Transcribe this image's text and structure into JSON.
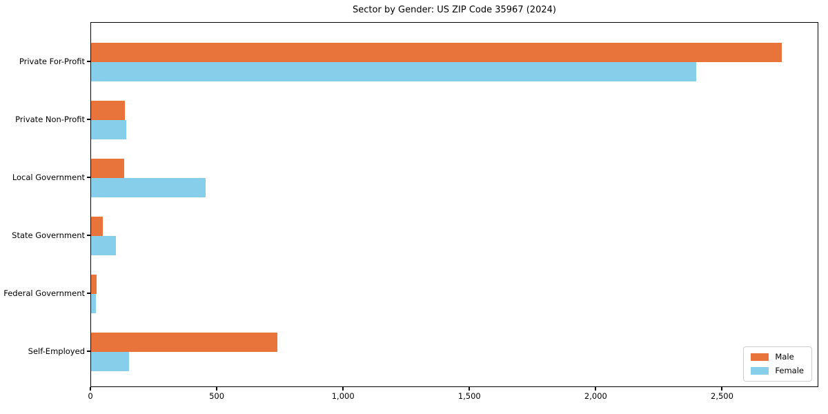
{
  "title": "Sector by Gender: US ZIP Code 35967 (2024)",
  "chart_data": {
    "type": "bar",
    "orientation": "horizontal",
    "title": "Sector by Gender: US ZIP Code 35967 (2024)",
    "categories": [
      "Private For-Profit",
      "Private Non-Profit",
      "Local Government",
      "State Government",
      "Federal Government",
      "Self-Employed"
    ],
    "series": [
      {
        "name": "Male",
        "color": "#e8743c",
        "values": [
          2740,
          135,
          130,
          47,
          21,
          740
        ]
      },
      {
        "name": "Female",
        "color": "#87ceeb",
        "values": [
          2400,
          140,
          455,
          98,
          19,
          150
        ]
      }
    ],
    "xlabel": "",
    "ylabel": "",
    "xlim": [
      0,
      2881
    ],
    "x_ticks": [
      0,
      500,
      1000,
      1500,
      2000,
      2500
    ],
    "x_tick_labels": [
      "0",
      "500",
      "1,000",
      "1,500",
      "2,000",
      "2,500"
    ],
    "grid": false,
    "legend": {
      "position": "lower right",
      "entries": [
        "Male",
        "Female"
      ]
    }
  },
  "colors": {
    "male": "#e8743c",
    "female": "#87ceeb",
    "spine": "#000000",
    "legend_border": "#cccccc",
    "background": "#ffffff"
  }
}
